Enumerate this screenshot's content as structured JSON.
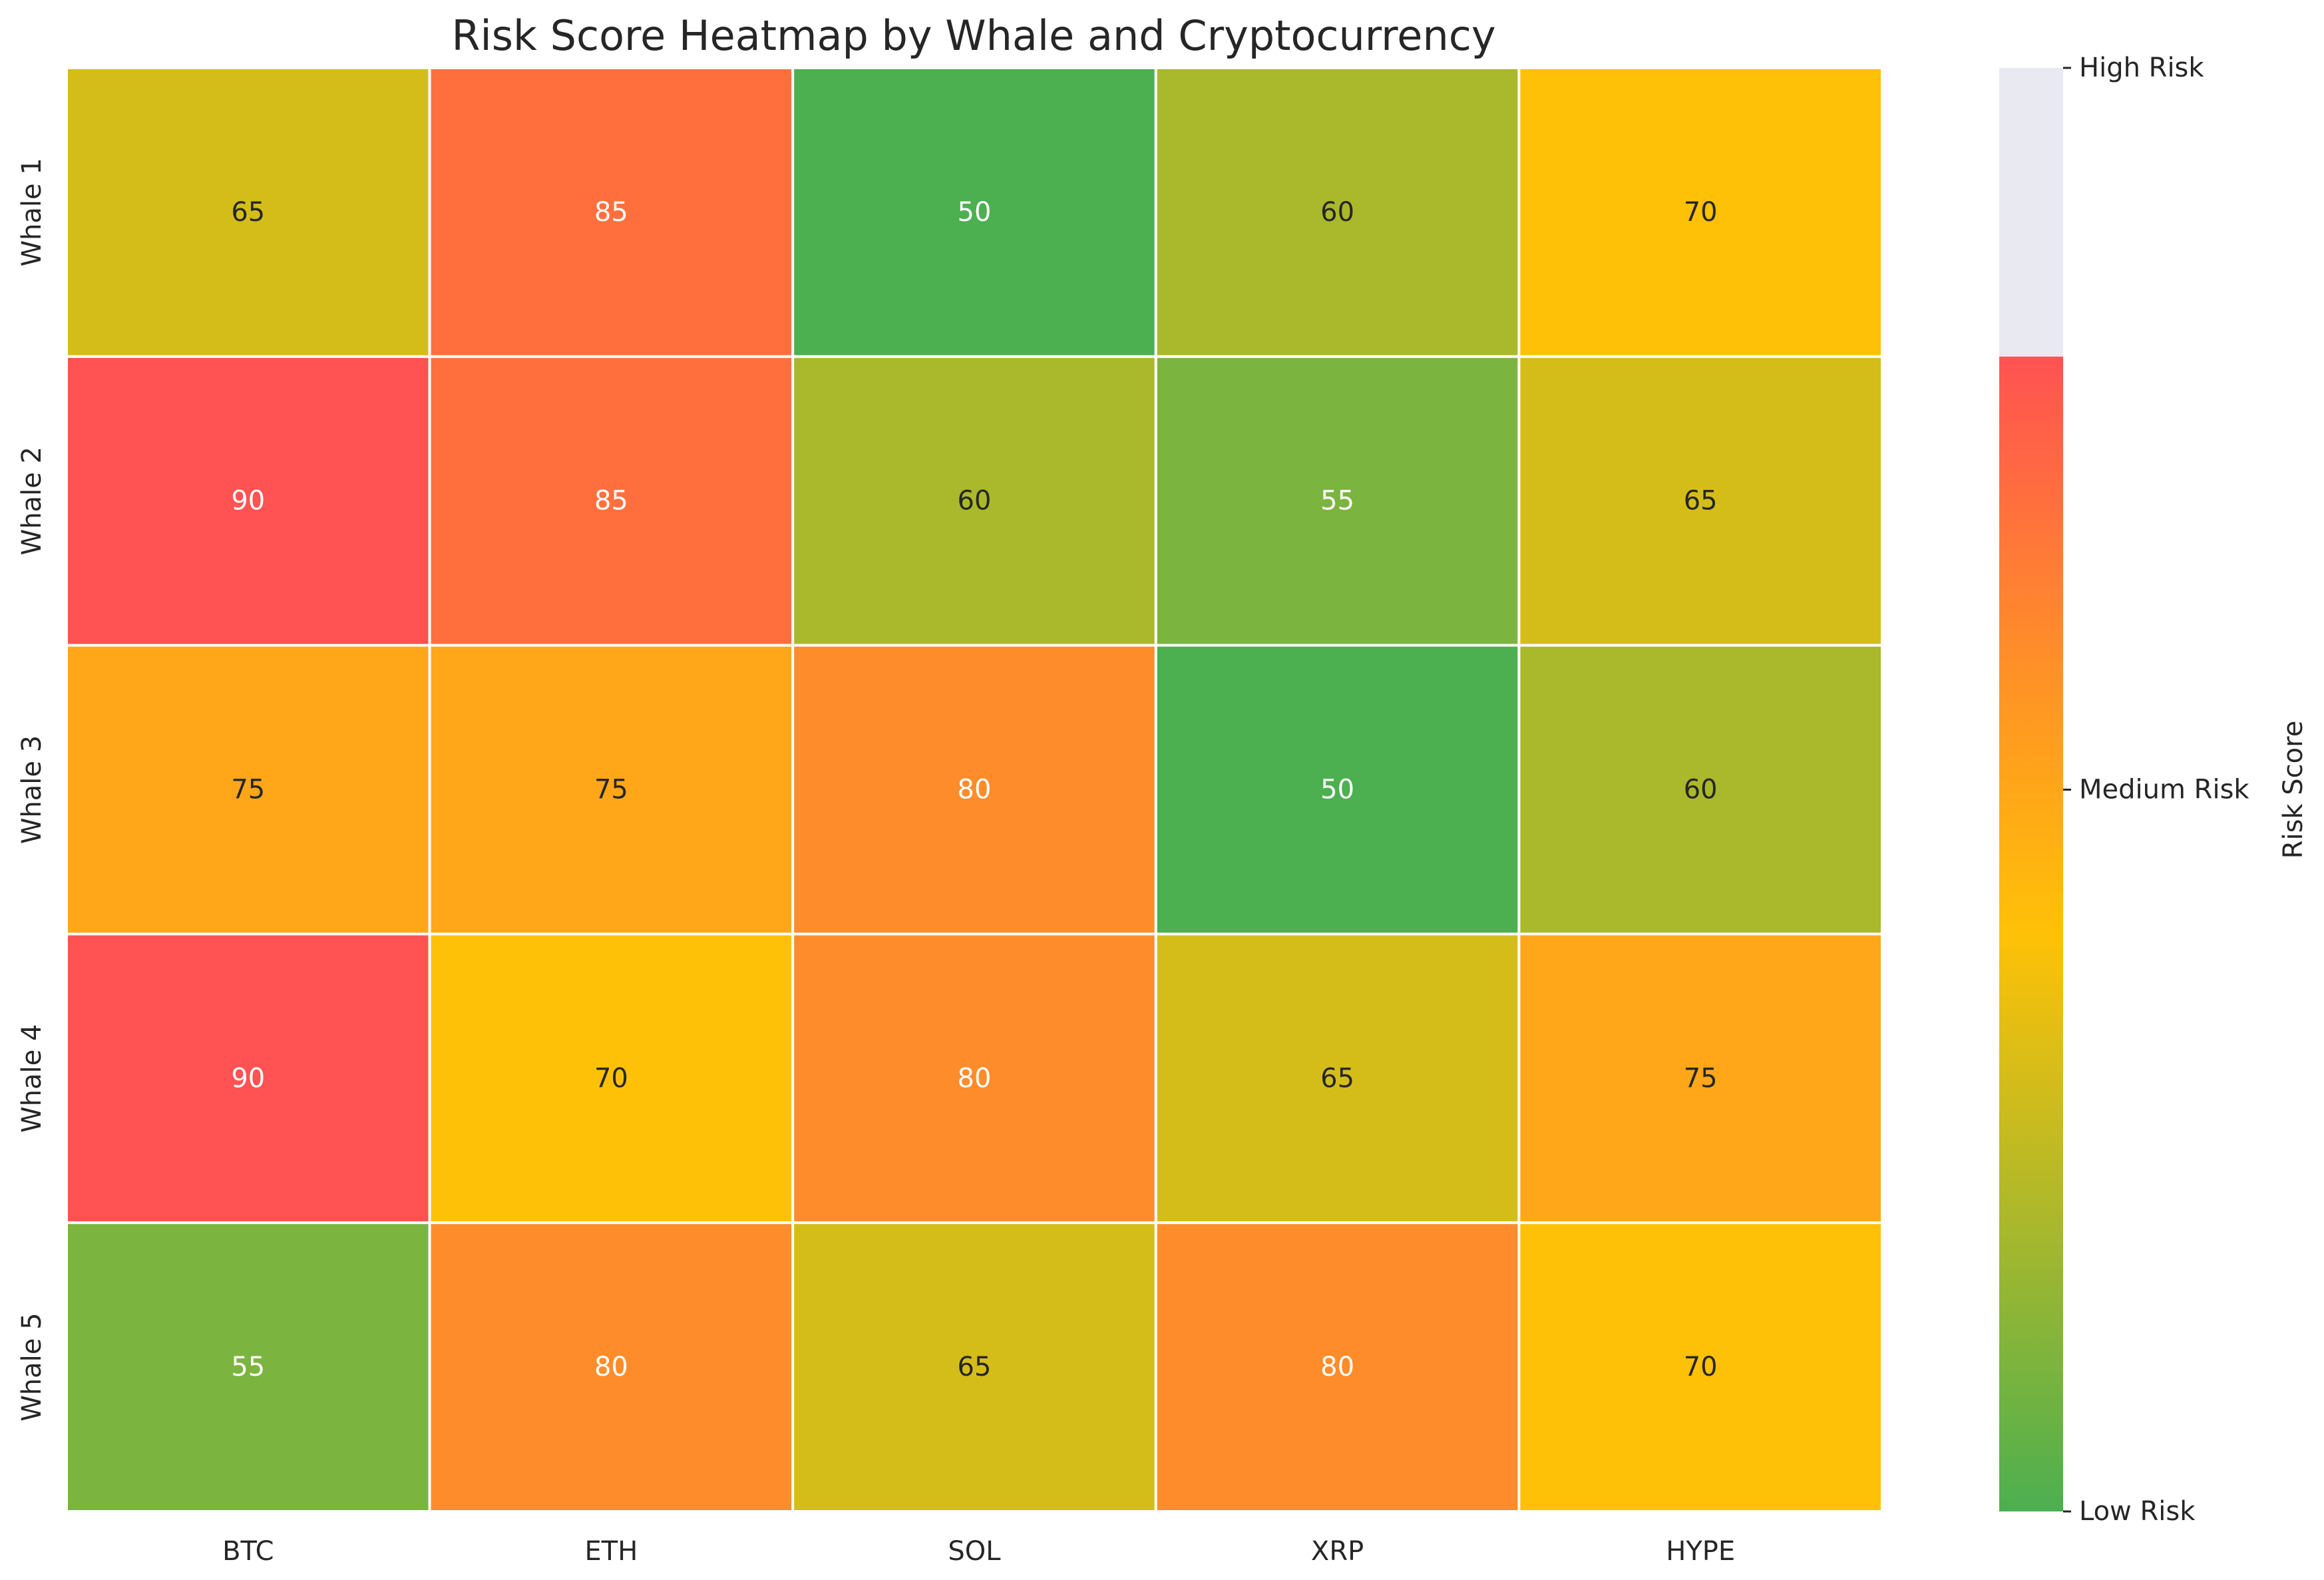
{
  "chart_data": {
    "type": "heatmap",
    "title": "Risk Score Heatmap by Whale and Cryptocurrency",
    "xlabel": "",
    "ylabel": "",
    "x_categories": [
      "BTC",
      "ETH",
      "SOL",
      "XRP",
      "HYPE"
    ],
    "y_categories": [
      "Whale 1",
      "Whale 2",
      "Whale 3",
      "Whale 4",
      "Whale 5"
    ],
    "values": [
      [
        65,
        85,
        50,
        60,
        70
      ],
      [
        90,
        85,
        60,
        55,
        65
      ],
      [
        75,
        75,
        80,
        50,
        60
      ],
      [
        90,
        70,
        80,
        65,
        75
      ],
      [
        55,
        80,
        65,
        80,
        70
      ]
    ],
    "annotations": true,
    "colorbar": {
      "label": "Risk Score",
      "range": [
        50,
        100
      ],
      "color_stops": [
        {
          "value": 50,
          "color": "#4caf50"
        },
        {
          "value": 60,
          "color": "#aab82b"
        },
        {
          "value": 70,
          "color": "#ffc107"
        },
        {
          "value": 80,
          "color": "#ff8c2a"
        },
        {
          "value": 90,
          "color": "#ff5252"
        }
      ],
      "over_color": "#e9e9f2",
      "over_from": 90,
      "ticks": [
        {
          "value": 50,
          "label": "Low Risk"
        },
        {
          "value": 75,
          "label": "Medium Risk"
        },
        {
          "value": 100,
          "label": "High Risk"
        }
      ]
    },
    "cell_border_color": "#ffffff",
    "dark_text_color": "#262626",
    "light_text_color": "#ffffff"
  }
}
